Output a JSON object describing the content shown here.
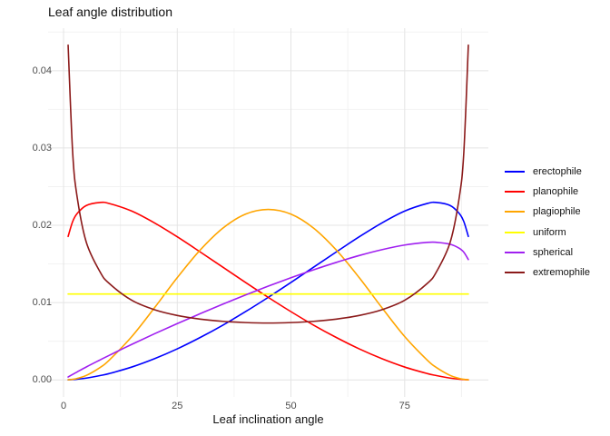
{
  "title": "Leaf angle distribution",
  "colors": {
    "background": "#FFFFFF",
    "grid_major": "#E4E4E4",
    "grid_minor": "#F2F2F2",
    "tick_text": "#4D4D4D",
    "title_text": "#111111"
  },
  "chart_data": {
    "type": "line",
    "title": "Leaf angle distribution",
    "xlabel": "Leaf inclination angle",
    "ylabel": "",
    "grid": true,
    "legend_position": "right",
    "xlim": [
      -3.4,
      93.4
    ],
    "ylim": [
      -0.0022,
      0.0455
    ],
    "x_major_ticks": [
      0,
      25,
      50,
      75
    ],
    "x_tick_labels": [
      "0",
      "25",
      "50",
      "75"
    ],
    "x_minor_gridlines": [
      12.5,
      37.5,
      62.5,
      87.5
    ],
    "y_major_ticks": [
      0,
      0.01,
      0.02,
      0.03,
      0.04
    ],
    "y_tick_labels": [
      "0.00",
      "0.01",
      "0.02",
      "0.03",
      "0.04"
    ],
    "y_minor_gridlines": [
      0.005,
      0.015,
      0.025,
      0.035,
      0.045
    ],
    "x": [
      1,
      2,
      3,
      5,
      8,
      10,
      15,
      20,
      25,
      30,
      35,
      40,
      45,
      50,
      55,
      60,
      65,
      70,
      75,
      80,
      82,
      85,
      87,
      88,
      89
    ],
    "series": [
      {
        "name": "erectophile",
        "color": "#0000FF",
        "values": [
          1e-05,
          5e-05,
          0.0001,
          0.00024,
          0.00056,
          0.00082,
          0.00167,
          0.00275,
          0.00402,
          0.00548,
          0.00708,
          0.00883,
          0.01068,
          0.01261,
          0.01459,
          0.01657,
          0.01851,
          0.02031,
          0.02184,
          0.02283,
          0.02295,
          0.02256,
          0.02153,
          0.02049,
          0.01856
        ]
      },
      {
        "name": "planophile",
        "color": "#FF0000",
        "values": [
          0.01856,
          0.02049,
          0.02153,
          0.02256,
          0.02295,
          0.02283,
          0.02184,
          0.02031,
          0.01851,
          0.01657,
          0.01459,
          0.01261,
          0.01068,
          0.00883,
          0.00708,
          0.00548,
          0.00402,
          0.00275,
          0.00167,
          0.00082,
          0.00056,
          0.00024,
          0.0001,
          5e-05,
          1e-05
        ]
      },
      {
        "name": "plagiophile",
        "color": "#FFA500",
        "values": [
          2e-05,
          8e-05,
          0.00019,
          0.00058,
          0.0016,
          0.00254,
          0.00561,
          0.00934,
          0.01323,
          0.01678,
          0.01962,
          0.02144,
          0.02205,
          0.02144,
          0.01962,
          0.01678,
          0.01323,
          0.00934,
          0.00561,
          0.00254,
          0.0016,
          0.00058,
          0.00019,
          8e-05,
          2e-05
        ]
      },
      {
        "name": "uniform",
        "color": "#FFFF00",
        "values": [
          0.01111,
          0.01111,
          0.01111,
          0.01111,
          0.01111,
          0.01111,
          0.01111,
          0.01111,
          0.01111,
          0.01111,
          0.01111,
          0.01111,
          0.01111,
          0.01111,
          0.01111,
          0.01111,
          0.01111,
          0.01111,
          0.01111,
          0.01111,
          0.01111,
          0.01111,
          0.01111,
          0.01111,
          0.01111
        ]
      },
      {
        "name": "spherical",
        "color": "#A020F0",
        "values": [
          0.00038,
          0.00072,
          0.00104,
          0.00168,
          0.00258,
          0.00317,
          0.0046,
          0.00597,
          0.00729,
          0.00856,
          0.0098,
          0.01099,
          0.01213,
          0.01322,
          0.01425,
          0.01521,
          0.01609,
          0.01685,
          0.01745,
          0.01779,
          0.0178,
          0.01755,
          0.01703,
          0.01652,
          0.01557
        ]
      },
      {
        "name": "extremophile",
        "color": "#8B1A1A",
        "values": [
          0.0433,
          0.0294,
          0.0236,
          0.0178,
          0.014,
          0.0125,
          0.0103,
          0.00908,
          0.00834,
          0.00787,
          0.00758,
          0.00742,
          0.00736,
          0.00742,
          0.00758,
          0.00787,
          0.00834,
          0.00908,
          0.0103,
          0.0125,
          0.014,
          0.0178,
          0.0236,
          0.0294,
          0.0433
        ]
      }
    ]
  }
}
